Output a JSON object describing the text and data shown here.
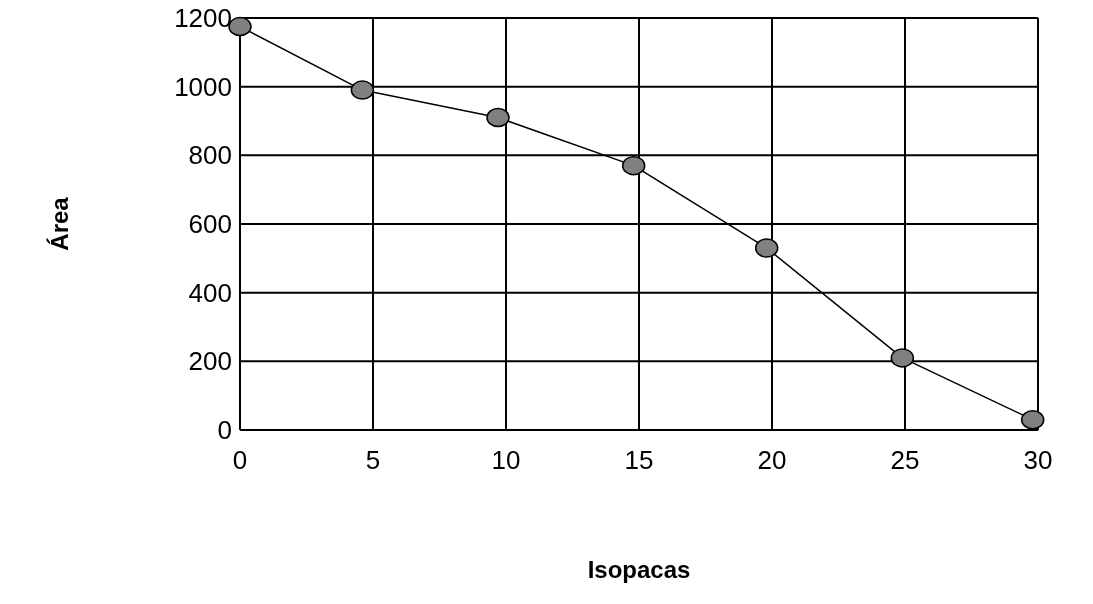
{
  "chart_data": {
    "type": "line",
    "xlabel": "Isopacas",
    "ylabel": "Área",
    "x": [
      0,
      4.6,
      9.7,
      14.8,
      19.8,
      24.9,
      29.8
    ],
    "series": [
      {
        "color": "#808080",
        "values": [
          1175,
          990,
          910,
          770,
          530,
          210,
          30
        ]
      }
    ],
    "xlim": [
      0,
      30
    ],
    "xticks": [
      0,
      5,
      10,
      15,
      20,
      25,
      30
    ],
    "ylim": [
      0,
      1200
    ],
    "yticks": [
      0,
      200,
      400,
      600,
      800,
      1000,
      1200
    ],
    "grid": true,
    "marker": "circle",
    "line_style": "solid"
  }
}
